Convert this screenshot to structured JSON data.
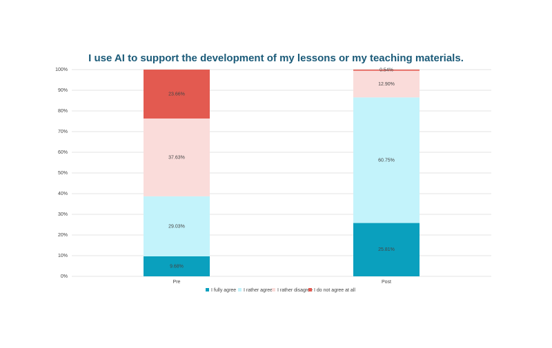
{
  "chart_data": {
    "type": "stacked_bar",
    "title": "I use AI to support the development of my lessons or my teaching materials.",
    "categories": [
      "Pre",
      "Post"
    ],
    "series": [
      {
        "name": "I fully agree",
        "color": "#0aa0be",
        "values": [
          9.68,
          25.81
        ],
        "value_labels": [
          "9.68%",
          "25.81%"
        ]
      },
      {
        "name": "I rather agree",
        "color": "#c3f3fb",
        "values": [
          29.03,
          60.75
        ],
        "value_labels": [
          "29.03%",
          "60.75%"
        ]
      },
      {
        "name": "I rather disagree",
        "color": "#fadcda",
        "values": [
          37.63,
          12.9
        ],
        "value_labels": [
          "37.63%",
          "12.90%"
        ]
      },
      {
        "name": "I do not agree at all",
        "color": "#e35a50",
        "values": [
          23.66,
          0.54
        ],
        "value_labels": [
          "23.66%",
          "0.54%"
        ]
      }
    ],
    "ylim": [
      0,
      100
    ],
    "yticks": [
      {
        "value": 0,
        "label": "0%"
      },
      {
        "value": 10,
        "label": "10%"
      },
      {
        "value": 20,
        "label": "20%"
      },
      {
        "value": 30,
        "label": "30%"
      },
      {
        "value": 40,
        "label": "40%"
      },
      {
        "value": 50,
        "label": "50%"
      },
      {
        "value": 60,
        "label": "60%"
      },
      {
        "value": 70,
        "label": "70%"
      },
      {
        "value": 80,
        "label": "80%"
      },
      {
        "value": 90,
        "label": "90%"
      },
      {
        "value": 100,
        "label": "100%"
      }
    ],
    "grid": true,
    "legend": "bottom"
  }
}
